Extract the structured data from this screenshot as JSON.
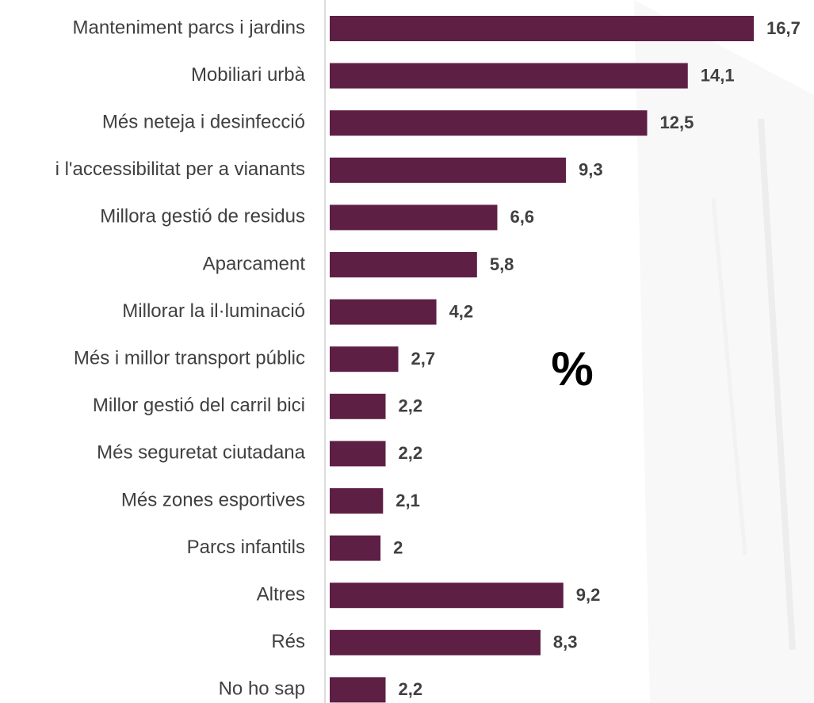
{
  "chart_data": {
    "type": "bar",
    "orientation": "horizontal",
    "annotation": "%",
    "categories": [
      "Manteniment parcs i jardins",
      "Mobiliari urbà",
      "Més neteja i desinfecció",
      "i l'accessibilitat per a vianants",
      "Millora gestió de residus",
      "Aparcament",
      "Millorar la il·luminació",
      "Més i millor transport públic",
      "Millor gestió del carril bici",
      "Més seguretat ciutadana",
      "Més zones esportives",
      "Parcs infantils",
      "Altres",
      "Rés",
      "No ho sap"
    ],
    "values": [
      16.7,
      14.1,
      12.5,
      9.3,
      6.6,
      5.8,
      4.2,
      2.7,
      2.2,
      2.2,
      2.1,
      2,
      9.2,
      8.3,
      2.2
    ],
    "value_labels": [
      "16,7",
      "14,1",
      "12,5",
      "9,3",
      "6,6",
      "5,8",
      "4,2",
      "2,7",
      "2,2",
      "2,2",
      "2,1",
      "2",
      "9,2",
      "8,3",
      "2,2"
    ],
    "color": "#5e1f45"
  }
}
